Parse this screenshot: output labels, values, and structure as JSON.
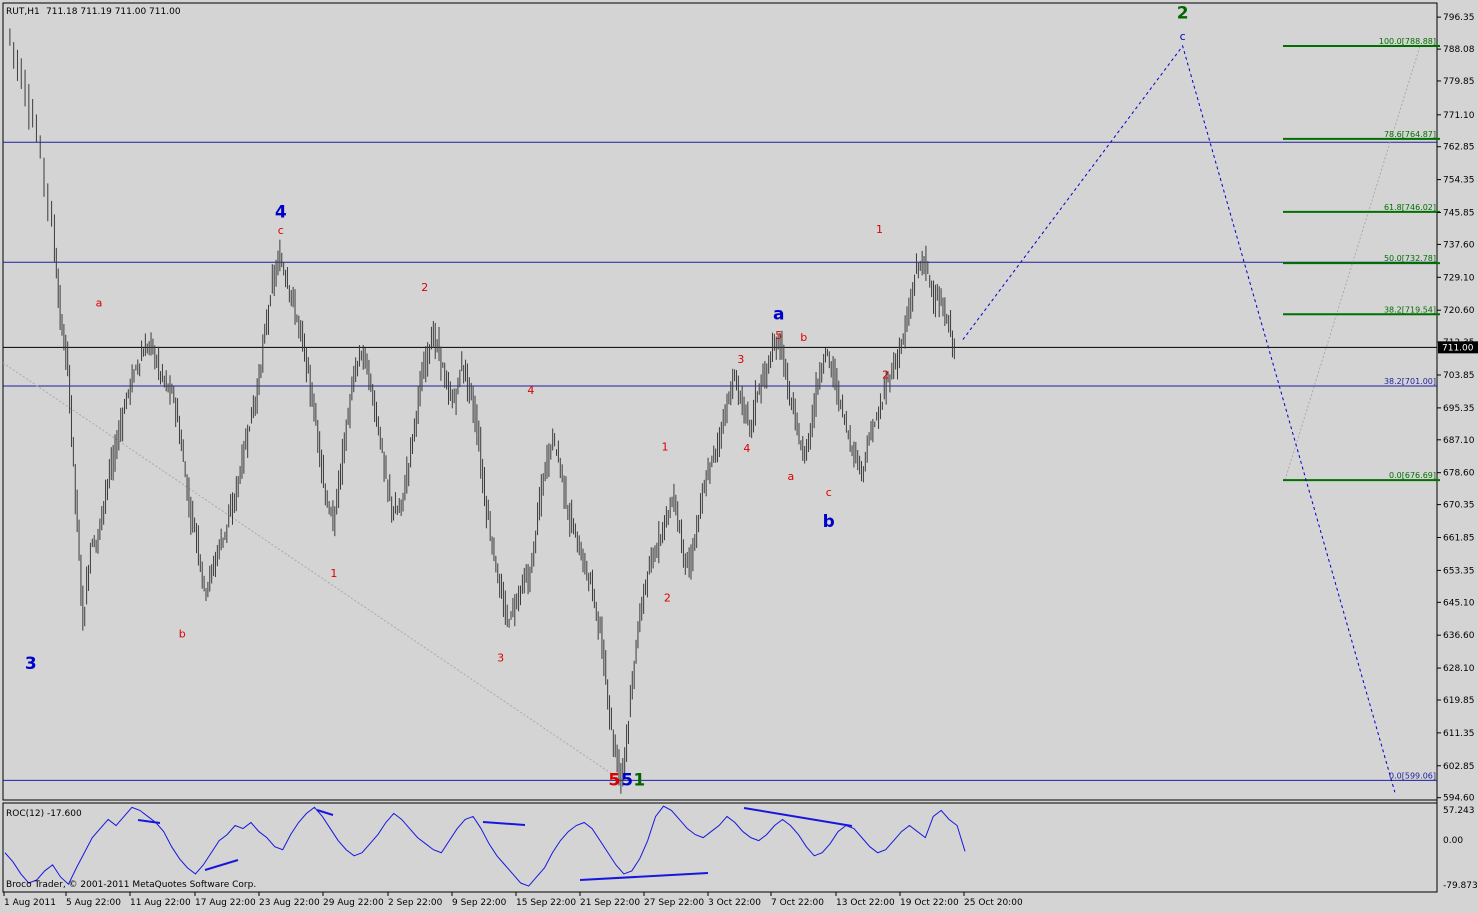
{
  "header": {
    "symbol": "RUT,H1",
    "ohlc": "711.18 711.19 711.00 711.00"
  },
  "indicator": {
    "label": "ROC(12) -17.600",
    "axis_labels": [
      "57.243",
      "0.00",
      "-79.873"
    ]
  },
  "copyright": "Broco Trader, © 2001-2011 MetaQuotes Software Corp.",
  "colors": {
    "background": "#d4d4d4",
    "candles": "#3c3c3c",
    "wave_blue": "#0000cc",
    "wave_red": "#dd0000",
    "wave_green": "#006600",
    "fib_green": "#007000",
    "hline_blue": "#1f1fa0",
    "roc_line": "#1818dd"
  },
  "chart_data": {
    "type": "candlestick",
    "symbol": "RUT",
    "timeframe": "H1",
    "ylim": [
      594.0,
      800.0
    ],
    "y_ticks": [
      "796.35",
      "788.08",
      "779.85",
      "771.10",
      "762.85",
      "754.35",
      "745.85",
      "737.60",
      "729.10",
      "720.60",
      "712.35",
      "703.85",
      "695.35",
      "687.10",
      "678.60",
      "670.35",
      "661.85",
      "653.35",
      "645.10",
      "636.60",
      "628.10",
      "619.85",
      "611.35",
      "602.85",
      "594.60"
    ],
    "x_tick_labels": [
      "1 Aug 2011",
      "5 Aug 22:00",
      "11 Aug 22:00",
      "17 Aug 22:00",
      "23 Aug 22:00",
      "29 Aug 22:00",
      "2 Sep 22:00",
      "9 Sep 22:00",
      "15 Sep 22:00",
      "21 Sep 22:00",
      "27 Sep 22:00",
      "3 Oct 22:00",
      "7 Oct 22:00",
      "13 Oct 22:00",
      "19 Oct 22:00",
      "25 Oct 20:00"
    ],
    "current_price": "711.00",
    "price_path": [
      [
        0,
        793
      ],
      [
        2,
        780
      ],
      [
        4,
        765
      ],
      [
        6,
        742
      ],
      [
        7,
        718
      ],
      [
        8,
        705
      ],
      [
        9,
        672
      ],
      [
        10,
        640
      ],
      [
        11,
        660
      ],
      [
        12,
        662
      ],
      [
        13,
        675
      ],
      [
        14,
        682
      ],
      [
        15,
        692
      ],
      [
        16,
        700
      ],
      [
        17,
        706
      ],
      [
        18,
        710
      ],
      [
        19,
        712
      ],
      [
        20,
        705
      ],
      [
        21,
        701
      ],
      [
        22,
        698
      ],
      [
        23,
        685
      ],
      [
        24,
        670
      ],
      [
        25,
        662
      ],
      [
        26,
        648
      ],
      [
        27,
        653
      ],
      [
        28,
        660
      ],
      [
        29,
        665
      ],
      [
        30,
        672
      ],
      [
        31,
        682
      ],
      [
        32,
        692
      ],
      [
        33,
        700
      ],
      [
        34,
        715
      ],
      [
        35,
        728
      ],
      [
        36,
        734
      ],
      [
        37,
        728
      ],
      [
        38,
        720
      ],
      [
        39,
        712
      ],
      [
        40,
        700
      ],
      [
        41,
        688
      ],
      [
        42,
        672
      ],
      [
        43,
        665
      ],
      [
        44,
        680
      ],
      [
        45,
        694
      ],
      [
        46,
        706
      ],
      [
        47,
        710
      ],
      [
        48,
        700
      ],
      [
        49,
        690
      ],
      [
        50,
        676
      ],
      [
        51,
        668
      ],
      [
        52,
        670
      ],
      [
        53,
        682
      ],
      [
        54,
        695
      ],
      [
        55,
        706
      ],
      [
        56,
        714
      ],
      [
        57,
        710
      ],
      [
        58,
        700
      ],
      [
        59,
        697
      ],
      [
        60,
        707
      ],
      [
        61,
        700
      ],
      [
        62,
        690
      ],
      [
        63,
        672
      ],
      [
        64,
        660
      ],
      [
        65,
        648
      ],
      [
        66,
        640
      ],
      [
        67,
        645
      ],
      [
        68,
        650
      ],
      [
        69,
        652
      ],
      [
        70,
        668
      ],
      [
        71,
        680
      ],
      [
        72,
        688
      ],
      [
        73,
        680
      ],
      [
        74,
        668
      ],
      [
        75,
        662
      ],
      [
        76,
        655
      ],
      [
        77,
        650
      ],
      [
        78,
        640
      ],
      [
        79,
        625
      ],
      [
        80,
        608
      ],
      [
        81,
        600
      ],
      [
        82,
        615
      ],
      [
        83,
        635
      ],
      [
        84,
        648
      ],
      [
        85,
        655
      ],
      [
        86,
        662
      ],
      [
        87,
        668
      ],
      [
        88,
        672
      ],
      [
        89,
        660
      ],
      [
        90,
        653
      ],
      [
        91,
        665
      ],
      [
        92,
        675
      ],
      [
        93,
        682
      ],
      [
        94,
        688
      ],
      [
        95,
        697
      ],
      [
        96,
        703
      ],
      [
        97,
        696
      ],
      [
        98,
        690
      ],
      [
        99,
        700
      ],
      [
        100,
        704
      ],
      [
        101,
        710
      ],
      [
        102,
        713
      ],
      [
        103,
        700
      ],
      [
        104,
        692
      ],
      [
        105,
        682
      ],
      [
        106,
        690
      ],
      [
        107,
        703
      ],
      [
        108,
        710
      ],
      [
        109,
        704
      ],
      [
        110,
        696
      ],
      [
        111,
        688
      ],
      [
        112,
        682
      ],
      [
        113,
        680
      ],
      [
        114,
        690
      ],
      [
        115,
        693
      ],
      [
        116,
        702
      ],
      [
        117,
        706
      ],
      [
        118,
        712
      ],
      [
        119,
        720
      ],
      [
        120,
        732
      ],
      [
        121,
        733
      ],
      [
        122,
        726
      ],
      [
        123,
        722
      ],
      [
        124,
        718
      ],
      [
        125,
        711
      ]
    ],
    "horizontal_lines": [
      {
        "price": 764.0,
        "kind": "blue"
      },
      {
        "price": 733.0,
        "kind": "blue"
      },
      {
        "price": 711.0,
        "kind": "black"
      },
      {
        "price": 701.0,
        "kind": "blue"
      },
      {
        "price": 599.06,
        "kind": "blue"
      }
    ],
    "fibonacci_levels": [
      {
        "label": "100.0[788.88]",
        "price": 788.88
      },
      {
        "label": "78.6[764.87]",
        "price": 764.87
      },
      {
        "label": "61.8[746.02]",
        "price": 746.02
      },
      {
        "label": "50.0[732.78]",
        "price": 732.78
      },
      {
        "label": "38.2[719.54]",
        "price": 719.54
      },
      {
        "label": "0.0[676.69]",
        "price": 676.69
      }
    ],
    "retracement_labels": [
      {
        "label": "38.2[701.00]",
        "price": 701.0
      },
      {
        "label": "0.0[599.06]",
        "price": 599.06
      }
    ],
    "projection_path": [
      [
        126,
        713
      ],
      [
        155,
        788.88
      ],
      [
        183,
        596
      ]
    ],
    "wave_labels": [
      {
        "text": "2",
        "bar": 155,
        "price": 796.0,
        "color": "green",
        "size": "large"
      },
      {
        "text": "c",
        "bar": 155,
        "price": 790.5,
        "color": "blue",
        "size": "small"
      },
      {
        "text": "4",
        "bar": 36,
        "price": 744.5,
        "color": "blue",
        "size": "large"
      },
      {
        "text": "c",
        "bar": 36,
        "price": 740.3,
        "color": "red",
        "size": "small"
      },
      {
        "text": "3",
        "bar": 3,
        "price": 627.8,
        "color": "blue",
        "size": "large"
      },
      {
        "text": "a",
        "bar": 12,
        "price": 721.5,
        "color": "red",
        "size": "small"
      },
      {
        "text": "b",
        "bar": 23,
        "price": 636.0,
        "color": "red",
        "size": "small"
      },
      {
        "text": "1",
        "bar": 43,
        "price": 651.7,
        "color": "red",
        "size": "small"
      },
      {
        "text": "2",
        "bar": 55,
        "price": 725.6,
        "color": "red",
        "size": "small"
      },
      {
        "text": "3",
        "bar": 65,
        "price": 629.8,
        "color": "red",
        "size": "small"
      },
      {
        "text": "4",
        "bar": 69,
        "price": 699.0,
        "color": "red",
        "size": "small"
      },
      {
        "text": "5",
        "bar": 80,
        "price": 597.8,
        "color": "red",
        "size": "large"
      },
      {
        "text": "5",
        "bar": 81.7,
        "price": 597.8,
        "color": "blue",
        "size": "large"
      },
      {
        "text": "1",
        "bar": 83.3,
        "price": 597.8,
        "color": "green",
        "size": "large"
      },
      {
        "text": "1",
        "bar": 86.7,
        "price": 684.3,
        "color": "red",
        "size": "small"
      },
      {
        "text": "2",
        "bar": 87,
        "price": 645.3,
        "color": "red",
        "size": "small"
      },
      {
        "text": "3",
        "bar": 96.7,
        "price": 707.0,
        "color": "red",
        "size": "small"
      },
      {
        "text": "4",
        "bar": 97.5,
        "price": 684.0,
        "color": "red",
        "size": "small"
      },
      {
        "text": "a",
        "bar": 101.7,
        "price": 718.2,
        "color": "blue",
        "size": "large"
      },
      {
        "text": "5",
        "bar": 101.7,
        "price": 713.2,
        "color": "red",
        "size": "small"
      },
      {
        "text": "b",
        "bar": 105,
        "price": 712.7,
        "color": "red",
        "size": "small"
      },
      {
        "text": "a",
        "bar": 103.3,
        "price": 676.7,
        "color": "red",
        "size": "small"
      },
      {
        "text": "c",
        "bar": 108.3,
        "price": 672.6,
        "color": "red",
        "size": "small"
      },
      {
        "text": "b",
        "bar": 108.3,
        "price": 664.5,
        "color": "blue",
        "size": "large"
      },
      {
        "text": "1",
        "bar": 115,
        "price": 740.6,
        "color": "red",
        "size": "small"
      },
      {
        "text": "2",
        "bar": 115.8,
        "price": 703.0,
        "color": "red",
        "size": "small"
      }
    ],
    "roc_data": {
      "name": "ROC(12)",
      "last_value": -17.6,
      "ylim": [
        -79.873,
        57.243
      ],
      "values": [
        -20,
        -35,
        -55,
        -70,
        -65,
        -50,
        -40,
        -60,
        -72,
        -45,
        -20,
        5,
        20,
        35,
        25,
        40,
        55,
        50,
        40,
        30,
        15,
        -10,
        -30,
        -45,
        -55,
        -40,
        -20,
        0,
        10,
        25,
        20,
        30,
        15,
        5,
        -10,
        -15,
        10,
        30,
        45,
        55,
        40,
        20,
        0,
        -15,
        -25,
        -20,
        -5,
        10,
        30,
        45,
        35,
        20,
        5,
        -5,
        -15,
        -20,
        0,
        20,
        35,
        40,
        20,
        -5,
        -25,
        -40,
        -55,
        -70,
        -75,
        -60,
        -45,
        -20,
        0,
        15,
        25,
        30,
        20,
        0,
        -20,
        -40,
        -55,
        -50,
        -30,
        0,
        40,
        57,
        50,
        35,
        20,
        10,
        5,
        15,
        25,
        40,
        30,
        15,
        5,
        0,
        10,
        25,
        35,
        25,
        10,
        -10,
        -25,
        -20,
        -5,
        15,
        25,
        20,
        5,
        -10,
        -20,
        -15,
        0,
        15,
        25,
        15,
        5,
        40,
        50,
        35,
        25,
        -17.6
      ]
    }
  }
}
